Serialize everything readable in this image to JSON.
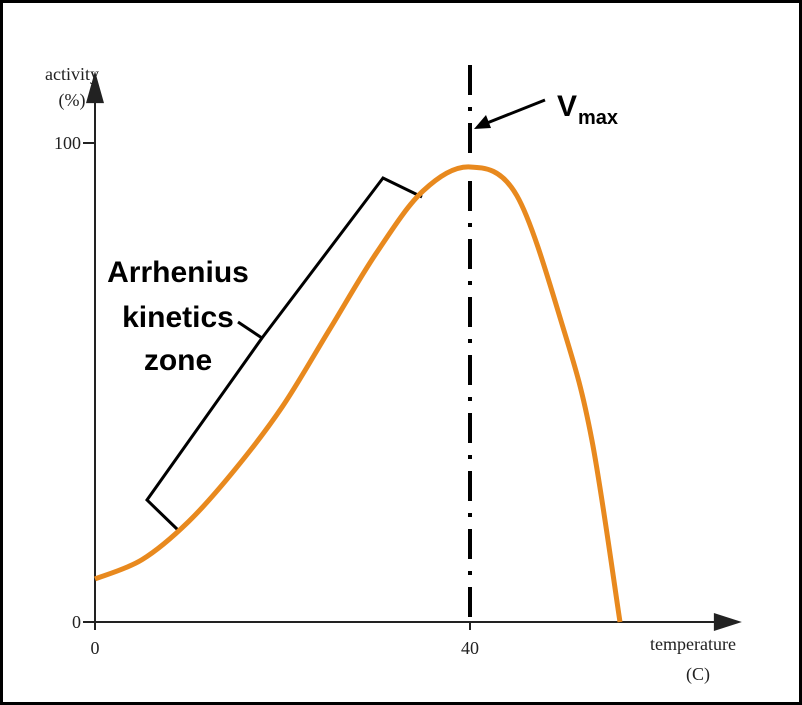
{
  "chart_data": {
    "type": "line",
    "y_label": [
      "activity",
      "(%)"
    ],
    "x_label": [
      "temperature",
      "(C)"
    ],
    "x": [
      0,
      5,
      10,
      15,
      20,
      25,
      30,
      35,
      40,
      45,
      50,
      53,
      56
    ],
    "series": [
      {
        "color": "#e8891e",
        "values": [
          9,
          13,
          21,
          32,
          45,
          61,
          77,
          90,
          95,
          89,
          61,
          38,
          0
        ]
      }
    ],
    "xlim": [
      0,
      69
    ],
    "ylim": [
      0,
      115
    ],
    "xticks": [
      0,
      40
    ],
    "yticks": [
      0,
      100
    ],
    "vline": {
      "x": 40,
      "label": "V",
      "label_sub": "max"
    },
    "annotation": [
      "Arrhenius",
      "kinetics",
      "zone"
    ]
  }
}
